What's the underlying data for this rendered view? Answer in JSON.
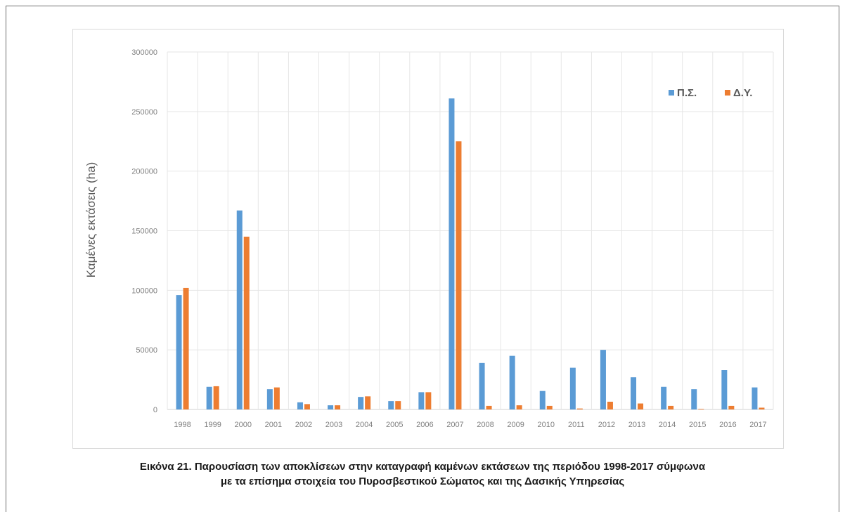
{
  "caption": {
    "line1": "Εικόνα 21. Παρουσίαση των αποκλίσεων στην καταγραφή καμένων εκτάσεων της περιόδου 1998-2017 σύμφωνα",
    "line2": "με τα επίσημα στοιχεία του Πυροσβεστικού Σώματος και της Δασικής Υπηρεσίας"
  },
  "chart_data": {
    "type": "bar",
    "ylabel": "Καμένες εκτάσεις (ha)",
    "xlabel": "",
    "ylim": [
      0,
      300000
    ],
    "yticks": [
      0,
      50000,
      100000,
      150000,
      200000,
      250000,
      300000
    ],
    "grid": true,
    "legend_position": "top-right",
    "categories": [
      "1998",
      "1999",
      "2000",
      "2001",
      "2002",
      "2003",
      "2004",
      "2005",
      "2006",
      "2007",
      "2008",
      "2009",
      "2010",
      "2011",
      "2012",
      "2013",
      "2014",
      "2015",
      "2016",
      "2017"
    ],
    "series": [
      {
        "name": "Π.Σ.",
        "color": "#5b9bd5",
        "values": [
          96000,
          19000,
          167000,
          17000,
          6000,
          3500,
          10500,
          7000,
          14500,
          261000,
          39000,
          45000,
          15500,
          35000,
          50000,
          27000,
          19000,
          17000,
          33000,
          18500
        ]
      },
      {
        "name": "Δ.Υ.",
        "color": "#ed7d31",
        "values": [
          102000,
          19500,
          145000,
          18500,
          4500,
          3500,
          11000,
          7000,
          14500,
          225000,
          3000,
          3500,
          3000,
          800,
          6500,
          5000,
          3000,
          500,
          3000,
          1500
        ]
      }
    ]
  }
}
